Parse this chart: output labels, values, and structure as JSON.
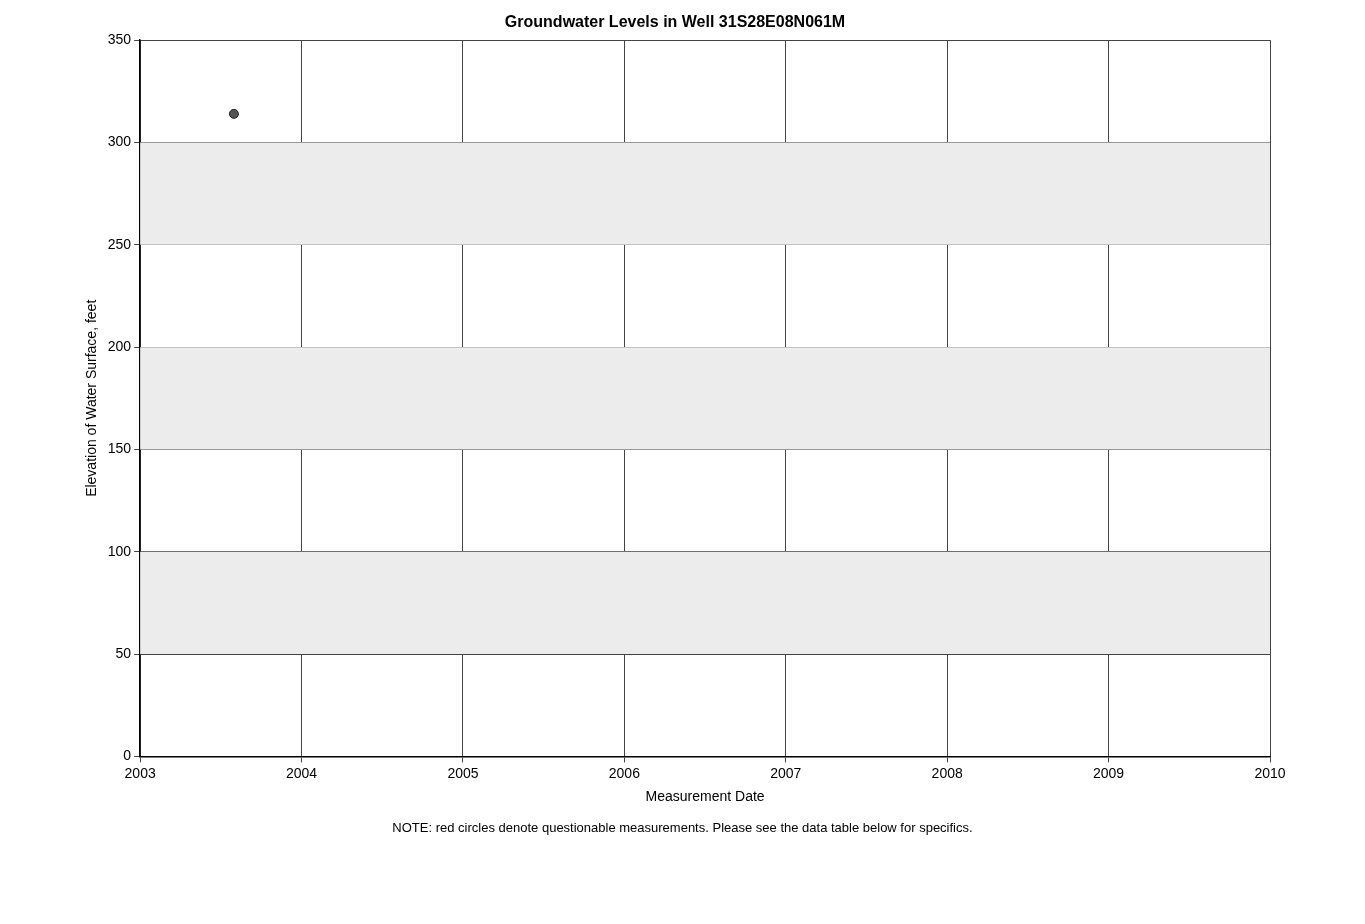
{
  "chart_data": {
    "type": "scatter",
    "title": "Groundwater Levels in Well 31S28E08N061M",
    "xlabel": "Measurement Date",
    "ylabel": "Elevation of Water Surface, feet",
    "x": [
      "2003-08-01"
    ],
    "series": [
      {
        "color": "#555555",
        "values": [
          314
        ]
      }
    ],
    "xlim": [
      "2003",
      "2010"
    ],
    "xticks": [
      "2003",
      "2004",
      "2005",
      "2006",
      "2007",
      "2008",
      "2009",
      "2010"
    ],
    "ylim": [
      0,
      350
    ],
    "yticks": [
      0,
      50,
      100,
      150,
      200,
      250,
      300,
      350
    ],
    "bands": [
      {
        "axis": "y",
        "from": 50,
        "to": 100,
        "color": "#ececec"
      },
      {
        "axis": "y",
        "from": 150,
        "to": 200,
        "color": "#ececec"
      },
      {
        "axis": "y",
        "from": 250,
        "to": 300,
        "color": "#ececec"
      }
    ],
    "grid": true,
    "legend": false,
    "marker": "circle",
    "annotations": [
      "NOTE: red circles denote questionable measurements. Please see the data table below for specifics."
    ]
  }
}
